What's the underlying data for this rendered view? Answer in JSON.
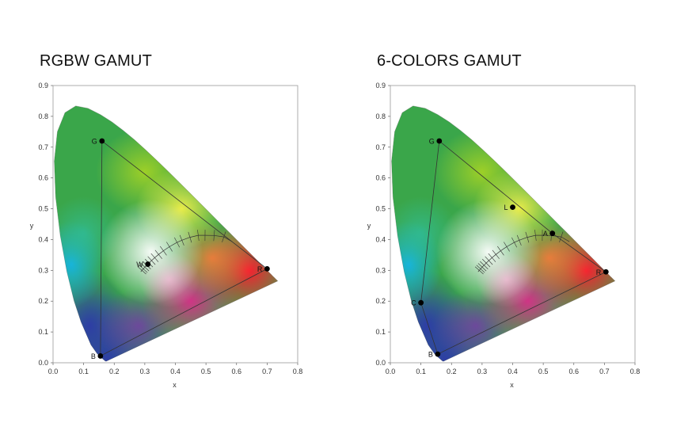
{
  "chart_data": [
    {
      "type": "scatter",
      "title": "RGBW GAMUT",
      "xlabel": "x",
      "ylabel": "y",
      "xlim": [
        0,
        0.8
      ],
      "ylim": [
        0,
        0.9
      ],
      "xticks": [
        "0.0",
        "0.1",
        "0.2",
        "0.3",
        "0.4",
        "0.5",
        "0.6",
        "0.7",
        "0.8"
      ],
      "yticks": [
        "0.0",
        "0.1",
        "0.2",
        "0.3",
        "0.4",
        "0.5",
        "0.6",
        "0.7",
        "0.8",
        "0.9"
      ],
      "gamut_triangle": [
        "R",
        "G",
        "B"
      ],
      "points": [
        {
          "label": "G",
          "x": 0.16,
          "y": 0.72
        },
        {
          "label": "R",
          "x": 0.7,
          "y": 0.305
        },
        {
          "label": "B",
          "x": 0.155,
          "y": 0.022
        },
        {
          "label": "W",
          "x": 0.31,
          "y": 0.32
        }
      ],
      "planckian_locus": true
    },
    {
      "type": "scatter",
      "title": "6-COLORS GAMUT",
      "xlabel": "x",
      "ylabel": "y",
      "xlim": [
        0,
        0.8
      ],
      "ylim": [
        0,
        0.9
      ],
      "xticks": [
        "0.0",
        "0.1",
        "0.2",
        "0.3",
        "0.4",
        "0.5",
        "0.6",
        "0.7",
        "0.8"
      ],
      "yticks": [
        "0.0",
        "0.1",
        "0.2",
        "0.3",
        "0.4",
        "0.5",
        "0.6",
        "0.7",
        "0.8",
        "0.9"
      ],
      "gamut_polygon": [
        "R",
        "A",
        "G",
        "C",
        "B"
      ],
      "points": [
        {
          "label": "G",
          "x": 0.16,
          "y": 0.72
        },
        {
          "label": "L",
          "x": 0.4,
          "y": 0.505
        },
        {
          "label": "A",
          "x": 0.53,
          "y": 0.42
        },
        {
          "label": "R",
          "x": 0.705,
          "y": 0.295
        },
        {
          "label": "C",
          "x": 0.1,
          "y": 0.195
        },
        {
          "label": "B",
          "x": 0.155,
          "y": 0.028
        }
      ],
      "planckian_locus": true
    }
  ]
}
